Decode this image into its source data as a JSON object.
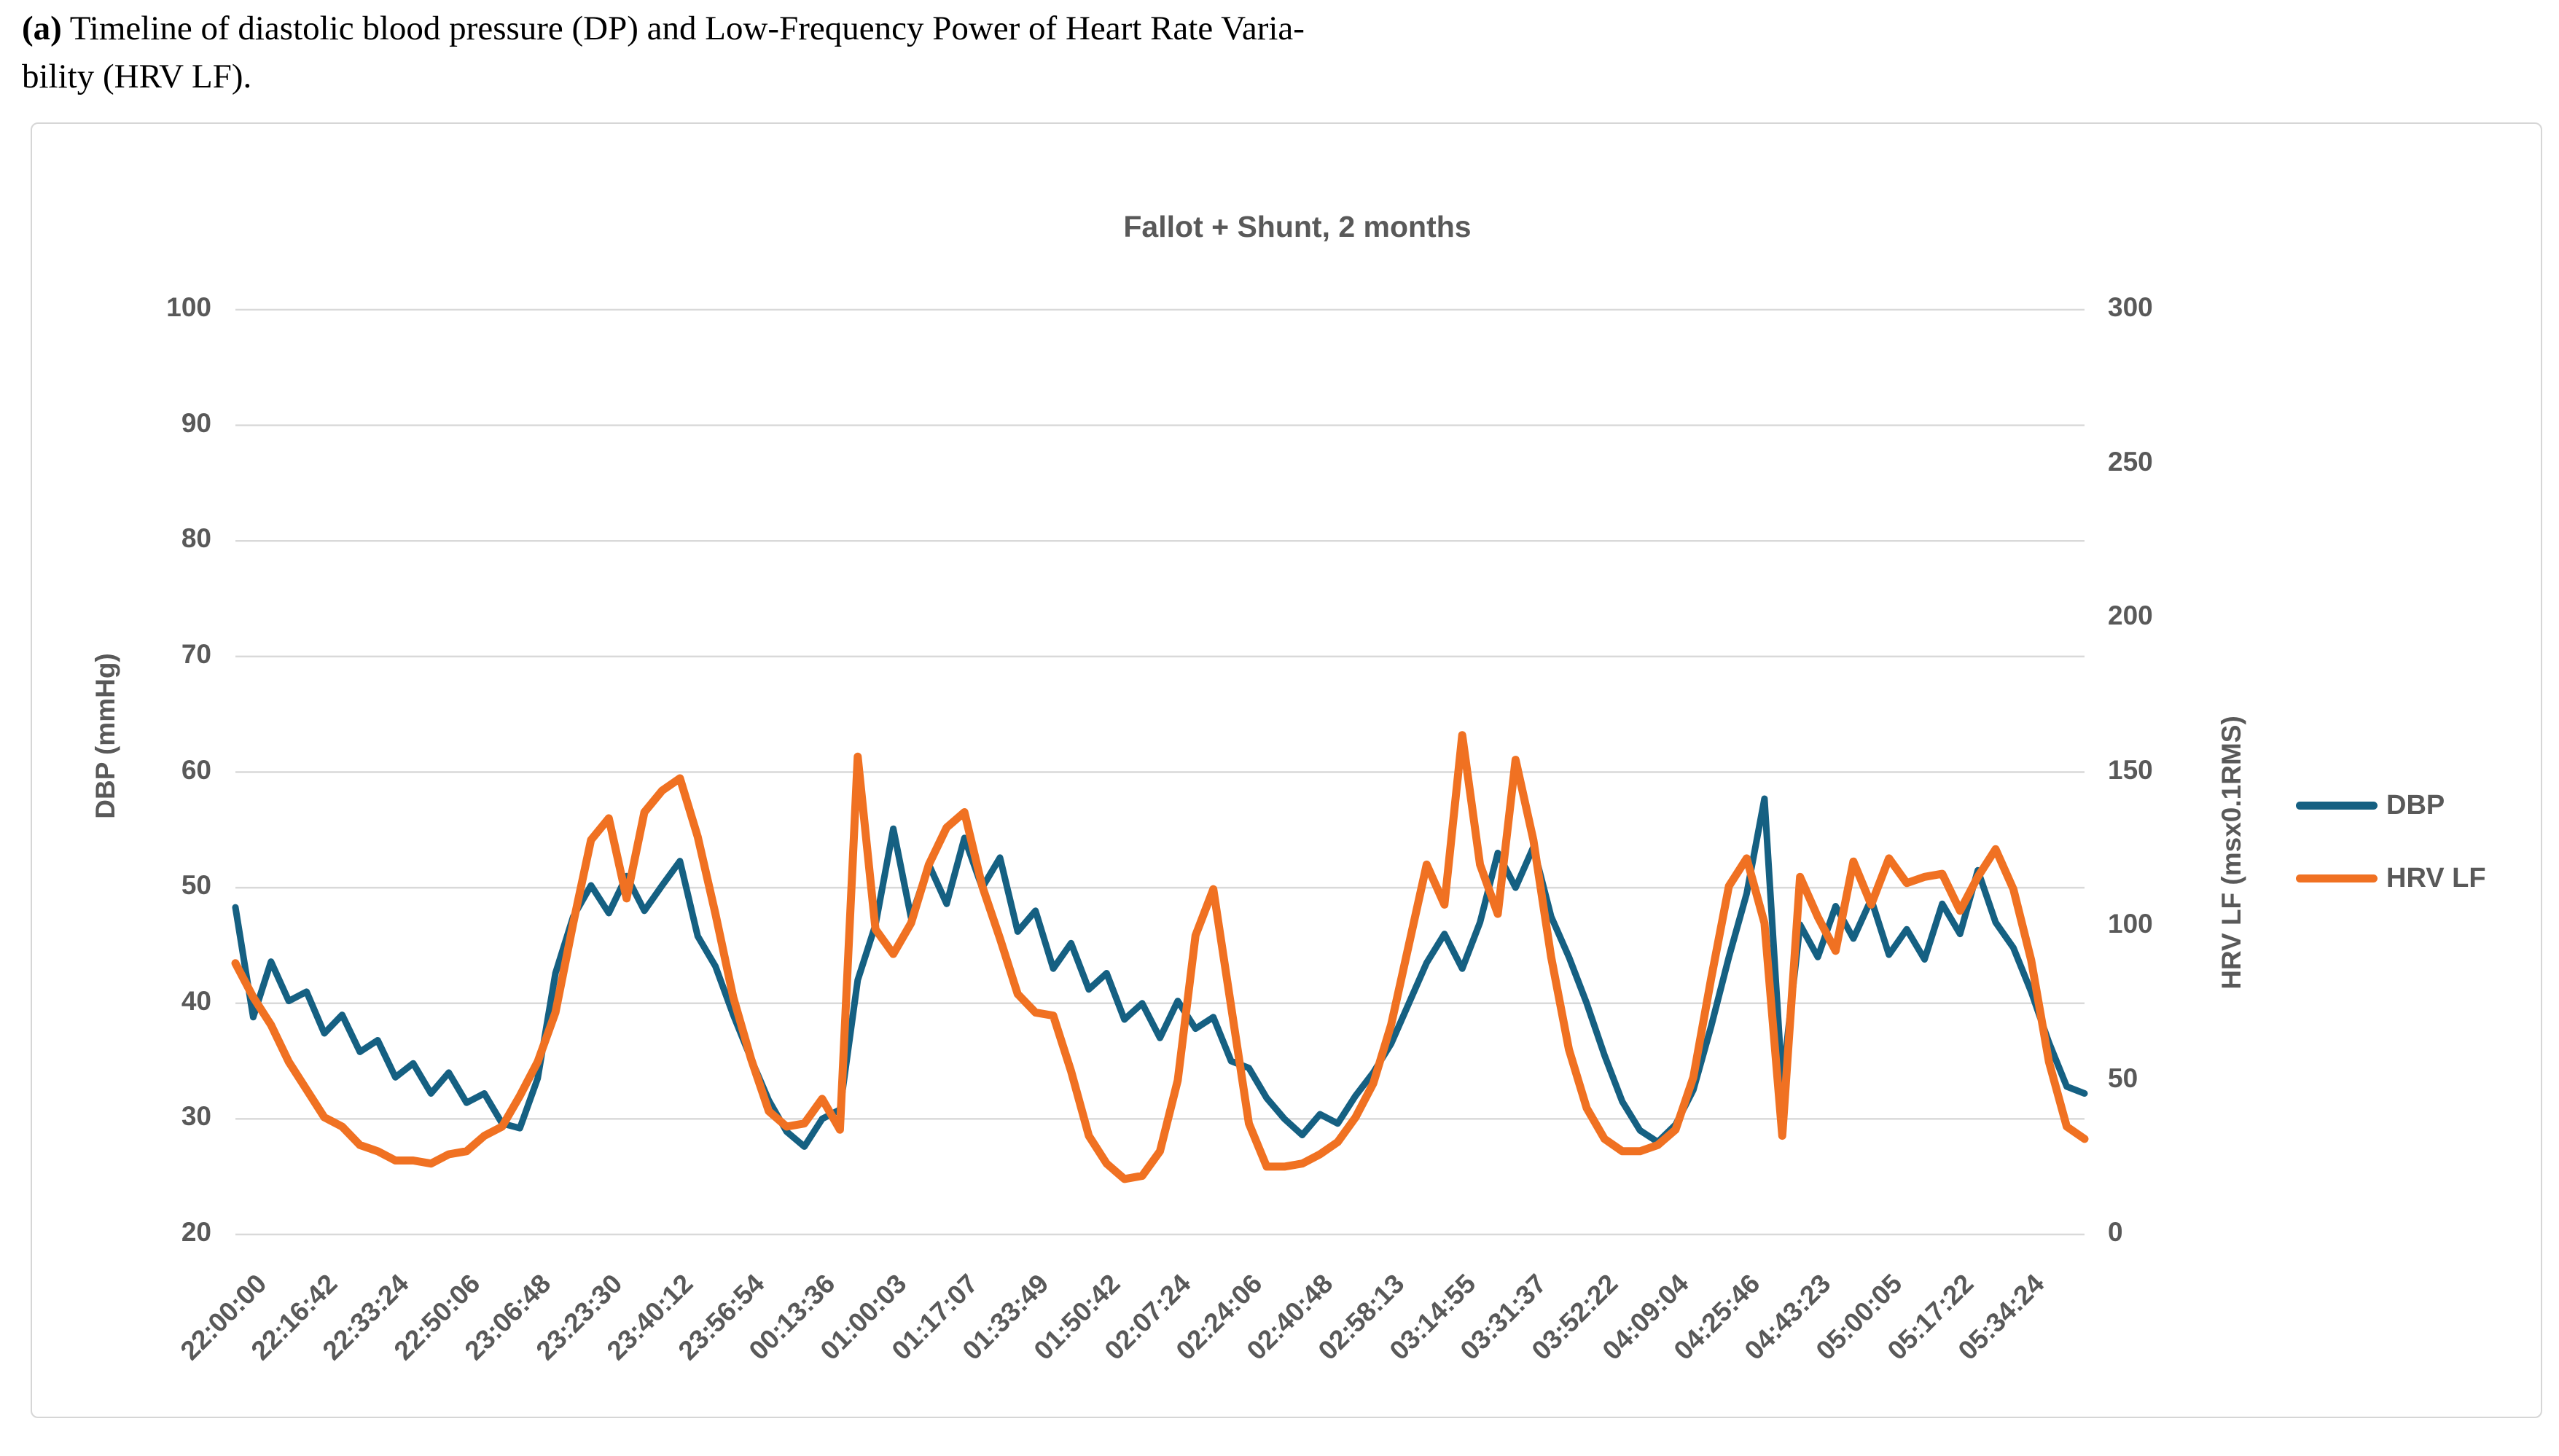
{
  "caption": {
    "tag": "(a)",
    "line1_rest": " Timeline of diastolic blood pressure (DP) and Low-Frequency Power of Heart Rate Varia-",
    "line2": "bility (HRV LF)."
  },
  "colors": {
    "dbp": "#156082",
    "hrv": "#F07122",
    "grid": "#d9d9d9",
    "text": "#595959",
    "frame_border": "#d6d6d6"
  },
  "chart_data": {
    "type": "line",
    "title": "Fallot + Shunt, 2 months",
    "grid": true,
    "legend_position": "right",
    "x_axis": {
      "labels": [
        "22:00:00",
        "22:16:42",
        "22:33:24",
        "22:50:06",
        "23:06:48",
        "23:23:30",
        "23:40:12",
        "23:56:54",
        "00:13:36",
        "01:00:03",
        "01:17:07",
        "01:33:49",
        "01:50:42",
        "02:07:24",
        "02:24:06",
        "02:40:48",
        "02:58:13",
        "03:14:55",
        "03:31:37",
        "03:52:22",
        "04:09:04",
        "04:25:46",
        "04:43:23",
        "05:00:05",
        "05:17:22",
        "05:34:24"
      ]
    },
    "y_left": {
      "label": "DBP (mmHg)",
      "min": 20,
      "max": 100,
      "ticks": [
        100,
        90,
        80,
        70,
        60,
        50,
        40,
        30,
        20
      ]
    },
    "y_right": {
      "label": "HRV LF (msx0.1RMS)",
      "min": 0,
      "max": 300,
      "ticks": [
        300,
        250,
        200,
        150,
        100,
        50,
        0
      ]
    },
    "sample_step_label_units": 0.25,
    "series": [
      {
        "name": "DBP",
        "axis": "left",
        "color": "#156082",
        "values": [
          48.3,
          38.8,
          43.6,
          40.2,
          41.0,
          37.4,
          39.0,
          35.8,
          36.8,
          33.6,
          34.8,
          32.2,
          34.0,
          31.4,
          32.2,
          29.6,
          29.2,
          33.5,
          42.6,
          47.5,
          50.2,
          47.8,
          51.0,
          48.0,
          50.2,
          52.3,
          45.8,
          43.2,
          39.0,
          35.2,
          31.6,
          28.9,
          27.6,
          30.0,
          30.8,
          42.0,
          46.8,
          55.1,
          47.4,
          52.0,
          48.6,
          54.3,
          50.0,
          52.6,
          46.2,
          48.0,
          43.0,
          45.2,
          41.2,
          42.6,
          38.6,
          40.0,
          37.0,
          40.2,
          37.8,
          38.8,
          35.0,
          34.4,
          31.8,
          30.0,
          28.6,
          30.4,
          29.6,
          32.0,
          34.0,
          36.5,
          40.0,
          43.5,
          46.0,
          43.0,
          47.0,
          53.0,
          50.0,
          53.5,
          47.5,
          44.0,
          40.0,
          35.5,
          31.5,
          29.0,
          28.0,
          29.5,
          32.5,
          38.0,
          44.0,
          49.5,
          57.7,
          33.0,
          46.8,
          44.0,
          48.4,
          45.6,
          49.0,
          44.2,
          46.4,
          43.8,
          48.6,
          46.0,
          51.5,
          47.0,
          44.8,
          41.0,
          36.6,
          32.8,
          32.2
        ]
      },
      {
        "name": "HRV LF",
        "axis": "right",
        "color": "#F07122",
        "values": [
          88,
          77,
          68,
          56,
          47,
          38,
          35,
          29,
          27,
          24,
          24,
          23,
          26,
          27,
          32,
          35,
          45,
          56,
          72,
          101,
          128,
          135,
          109,
          137,
          144,
          148,
          129,
          104,
          77,
          57,
          40,
          35,
          36,
          44,
          34,
          155,
          99,
          91,
          101,
          120,
          132,
          137,
          113,
          96,
          78,
          72,
          71,
          53,
          32,
          23,
          18,
          19,
          27,
          50,
          97,
          112,
          74,
          36,
          22,
          22,
          23,
          26,
          30,
          38,
          49,
          68,
          94,
          120,
          107,
          162,
          120,
          104,
          154,
          128,
          90,
          60,
          41,
          31,
          27,
          27,
          29,
          34,
          51,
          83,
          113,
          122,
          101,
          32,
          116,
          103,
          92,
          121,
          107,
          122,
          114,
          116,
          117,
          105,
          116,
          125,
          112,
          89,
          56,
          35,
          31
        ]
      }
    ]
  }
}
